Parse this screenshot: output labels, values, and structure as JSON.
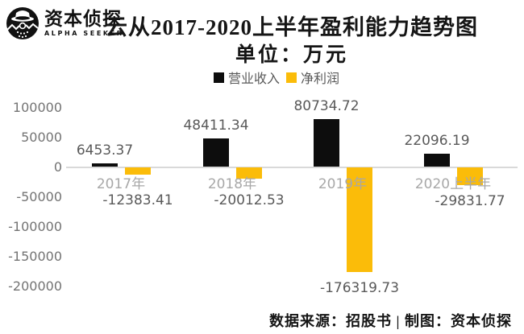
{
  "logo": {
    "brand_cn": "资本侦探",
    "brand_en": "ALPHA SEEKER"
  },
  "header": {
    "title": "云从2017-2020上半年盈利能力趋势图",
    "subtitle": "单位：万元"
  },
  "legend": [
    {
      "label": "营业收入",
      "color": "#0d0d0d"
    },
    {
      "label": "净利润",
      "color": "#fbbc09"
    }
  ],
  "footer": {
    "text": "数据来源：招股书 | 制图：资本侦探"
  },
  "chart_data": {
    "type": "bar",
    "title": "云从2017-2020上半年盈利能力趋势图",
    "subtitle": "单位：万元",
    "unit": "万元",
    "categories": [
      "2017年",
      "2018年",
      "2019年",
      "2020上半年"
    ],
    "series": [
      {
        "name": "营业收入",
        "color": "#0d0d0d",
        "values": [
          6453.37,
          48411.34,
          80734.72,
          22096.19
        ]
      },
      {
        "name": "净利润",
        "color": "#fbbc09",
        "values": [
          -12383.41,
          -20012.53,
          -176319.73,
          -29831.77
        ]
      }
    ],
    "y_ticks": [
      100000,
      50000,
      0,
      -50000,
      -100000,
      -150000,
      -200000
    ],
    "ylim": [
      -200000,
      100000
    ],
    "grid": false,
    "legend_position": "top",
    "value_labels_shown": true
  }
}
